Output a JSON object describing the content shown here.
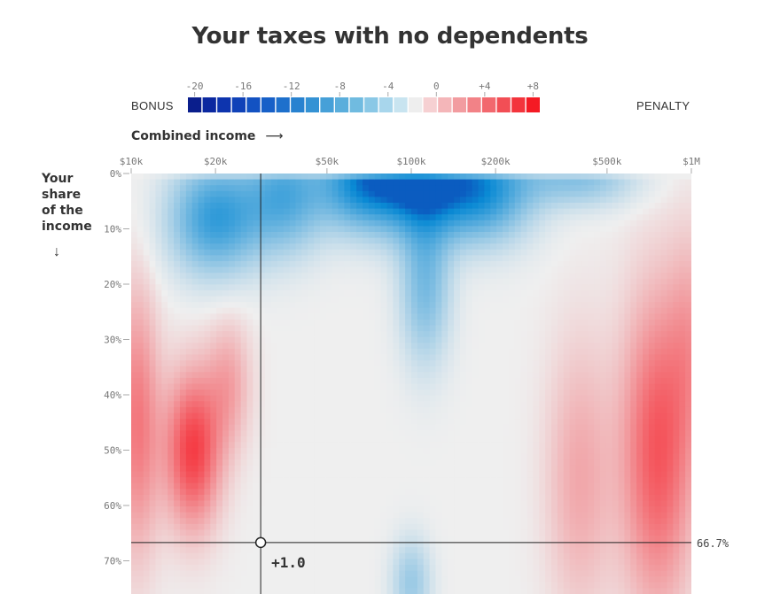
{
  "title": "Your taxes with no dependents",
  "legend": {
    "left_label": "BONUS",
    "right_label": "PENALTY",
    "ticks": [
      "-20",
      "-16",
      "-12",
      "-8",
      "-4",
      "0",
      "+4",
      "+8"
    ],
    "colors_bonus": [
      "#0a1e8c",
      "#0b28a0",
      "#0d34ae",
      "#1042b8",
      "#1352c2",
      "#1760c8",
      "#1e70cc",
      "#2882d0",
      "#3492d4",
      "#46a0d8",
      "#5aaedc",
      "#70bbe0",
      "#8ac8e6",
      "#a8d6ec",
      "#c8e4f0"
    ],
    "colors_neutral": [
      "#eeeeee"
    ],
    "colors_penalty": [
      "#f6d0d2",
      "#f4b6b9",
      "#f29ca0",
      "#f28287",
      "#f2686e",
      "#f24e55",
      "#f3343c",
      "#f41a24"
    ]
  },
  "xaxis": {
    "title": "Combined income",
    "arrow": "⟶",
    "ticks": [
      {
        "label": "$10k",
        "value": 10000
      },
      {
        "label": "$20k",
        "value": 20000
      },
      {
        "label": "$50k",
        "value": 50000
      },
      {
        "label": "$100k",
        "value": 100000
      },
      {
        "label": "$200k",
        "value": 200000
      },
      {
        "label": "$500k",
        "value": 500000
      },
      {
        "label": "$1M",
        "value": 1000000
      }
    ]
  },
  "yaxis": {
    "title_lines": [
      "Your",
      "share",
      "of the",
      "income"
    ],
    "arrow": "↓",
    "ticks": [
      {
        "label": "0%",
        "value": 0
      },
      {
        "label": "10%",
        "value": 10
      },
      {
        "label": "20%",
        "value": 20
      },
      {
        "label": "30%",
        "value": 30
      },
      {
        "label": "40%",
        "value": 40
      },
      {
        "label": "50%",
        "value": 50
      },
      {
        "label": "60%",
        "value": 60
      },
      {
        "label": "70%",
        "value": 70
      }
    ]
  },
  "chart_data": {
    "type": "heatmap",
    "title": "Your taxes with no dependents",
    "xlabel": "Combined income",
    "ylabel": "Your share of the income",
    "x_scale": "log",
    "xlim": [
      10000,
      1000000
    ],
    "ylim": [
      0,
      76
    ],
    "color_range": [
      -20,
      8
    ],
    "regions_note_values": [
      {
        "income": 10000,
        "share": 0,
        "value": 0
      },
      {
        "income": 20000,
        "share": 5,
        "value": -10
      },
      {
        "income": 100000,
        "share": 0,
        "value": -16
      },
      {
        "income": 17000,
        "share": 50,
        "value": 7
      },
      {
        "income": 700000,
        "share": 50,
        "value": 6
      },
      {
        "income": 100000,
        "share": 70,
        "value": -5
      }
    ],
    "crosshair": {
      "income": 29000,
      "share": 66.7,
      "share_label": "66.7%",
      "value_label": "+1.0"
    }
  }
}
